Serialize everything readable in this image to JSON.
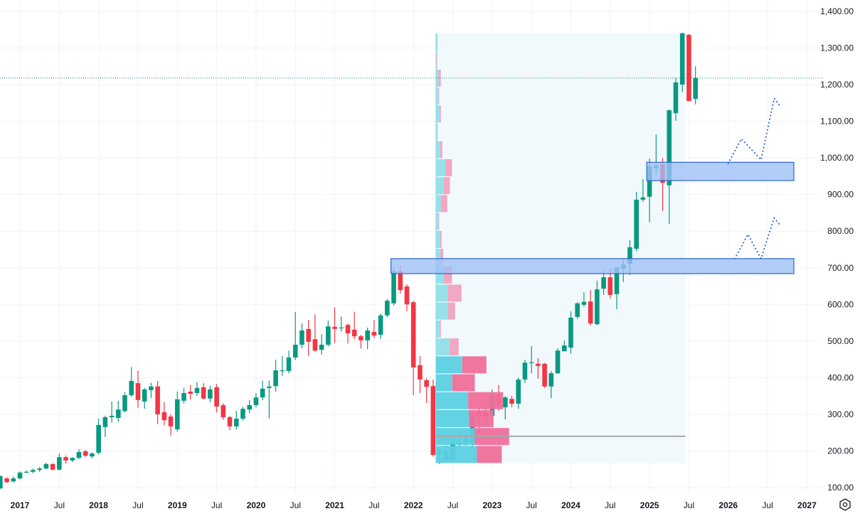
{
  "chart_data": {
    "type": "candlestick",
    "interval": "monthly",
    "colors": {
      "up": "#089981",
      "down": "#f23645",
      "grid": "#f0f3fa",
      "zone_fill": "#9fc0f5",
      "zone_border": "#2f63c9",
      "projection": "#3b6fd0",
      "last_price_line": "#0d8a80",
      "profile_bg": "#f2f9fd",
      "profile_up": "#5bd0e0",
      "profile_down": "#ef6f9b",
      "profile_up_outside": "#90dfe8",
      "profile_down_outside": "#f0a3c0",
      "poc": "#a6a8ad"
    },
    "ylim": [
      100,
      1400
    ],
    "price_ticks": [
      "100.00",
      "200.00",
      "300.00",
      "400.00",
      "500.00",
      "600.00",
      "700.00",
      "800.00",
      "900.00",
      "1,000.00",
      "1,100.00",
      "1,200.00",
      "1,300.00",
      "1,400.00"
    ],
    "price_tick_values": [
      100,
      200,
      300,
      400,
      500,
      600,
      700,
      800,
      900,
      1000,
      1100,
      1200,
      1300,
      1400
    ],
    "time_ticks": [
      {
        "label": "2017",
        "date": "2017-01",
        "bold": true
      },
      {
        "label": "Jul",
        "date": "2017-07",
        "bold": false
      },
      {
        "label": "2018",
        "date": "2018-01",
        "bold": true
      },
      {
        "label": "Jul",
        "date": "2018-07",
        "bold": false
      },
      {
        "label": "2019",
        "date": "2019-01",
        "bold": true
      },
      {
        "label": "Jul",
        "date": "2019-07",
        "bold": false
      },
      {
        "label": "2020",
        "date": "2020-01",
        "bold": true
      },
      {
        "label": "Jul",
        "date": "2020-07",
        "bold": false
      },
      {
        "label": "2021",
        "date": "2021-01",
        "bold": true
      },
      {
        "label": "Jul",
        "date": "2021-07",
        "bold": false
      },
      {
        "label": "2022",
        "date": "2022-01",
        "bold": true
      },
      {
        "label": "Jul",
        "date": "2022-07",
        "bold": false
      },
      {
        "label": "2023",
        "date": "2023-01",
        "bold": true
      },
      {
        "label": "Jul",
        "date": "2023-07",
        "bold": false
      },
      {
        "label": "2024",
        "date": "2024-01",
        "bold": true
      },
      {
        "label": "Jul",
        "date": "2024-07",
        "bold": false
      },
      {
        "label": "2025",
        "date": "2025-01",
        "bold": true
      },
      {
        "label": "Jul",
        "date": "2025-07",
        "bold": false
      },
      {
        "label": "2026",
        "date": "2026-01",
        "bold": true
      },
      {
        "label": "Jul",
        "date": "2026-07",
        "bold": false
      },
      {
        "label": "2027",
        "date": "2027-01",
        "bold": true
      }
    ],
    "last_price": 1218,
    "candles_columns": [
      "date",
      "open",
      "high",
      "low",
      "close"
    ],
    "candles": [
      [
        "2016-10",
        98,
        133,
        96,
        131
      ],
      [
        "2016-11",
        125,
        128,
        112,
        115
      ],
      [
        "2016-12",
        117,
        130,
        114,
        125
      ],
      [
        "2017-01",
        125,
        144,
        123,
        141
      ],
      [
        "2017-02",
        142,
        147,
        140,
        143
      ],
      [
        "2017-03",
        143,
        152,
        139,
        148
      ],
      [
        "2017-04",
        148,
        156,
        143,
        152
      ],
      [
        "2017-05",
        152,
        168,
        150,
        164
      ],
      [
        "2017-06",
        164,
        167,
        147,
        149
      ],
      [
        "2017-07",
        149,
        193,
        147,
        183
      ],
      [
        "2017-08",
        183,
        188,
        165,
        174
      ],
      [
        "2017-09",
        174,
        183,
        170,
        181
      ],
      [
        "2017-10",
        181,
        205,
        178,
        197
      ],
      [
        "2017-11",
        199,
        203,
        183,
        187
      ],
      [
        "2017-12",
        185,
        196,
        180,
        193
      ],
      [
        "2018-01",
        195,
        288,
        190,
        271
      ],
      [
        "2018-02",
        265,
        296,
        238,
        292
      ],
      [
        "2018-03",
        292,
        335,
        277,
        296
      ],
      [
        "2018-04",
        290,
        337,
        280,
        313
      ],
      [
        "2018-05",
        309,
        360,
        305,
        352
      ],
      [
        "2018-06",
        352,
        429,
        348,
        391
      ],
      [
        "2018-07",
        385,
        419,
        318,
        339
      ],
      [
        "2018-08",
        335,
        372,
        315,
        368
      ],
      [
        "2018-09",
        366,
        386,
        345,
        376
      ],
      [
        "2018-10",
        376,
        391,
        273,
        300
      ],
      [
        "2018-11",
        306,
        333,
        270,
        284
      ],
      [
        "2018-12",
        294,
        300,
        242,
        267
      ],
      [
        "2019-01",
        259,
        362,
        253,
        341
      ],
      [
        "2019-02",
        337,
        372,
        330,
        358
      ],
      [
        "2019-03",
        362,
        380,
        340,
        356
      ],
      [
        "2019-04",
        358,
        388,
        350,
        372
      ],
      [
        "2019-05",
        374,
        385,
        340,
        343
      ],
      [
        "2019-06",
        343,
        378,
        333,
        368
      ],
      [
        "2019-07",
        374,
        383,
        305,
        321
      ],
      [
        "2019-08",
        325,
        330,
        285,
        292
      ],
      [
        "2019-09",
        292,
        296,
        256,
        267
      ],
      [
        "2019-10",
        267,
        309,
        259,
        288
      ],
      [
        "2019-11",
        288,
        320,
        283,
        315
      ],
      [
        "2019-12",
        313,
        339,
        303,
        325
      ],
      [
        "2020-01",
        325,
        358,
        319,
        346
      ],
      [
        "2020-02",
        346,
        392,
        338,
        370
      ],
      [
        "2020-03",
        372,
        392,
        289,
        376
      ],
      [
        "2020-04",
        377,
        449,
        362,
        420
      ],
      [
        "2020-05",
        418,
        459,
        405,
        420
      ],
      [
        "2020-06",
        418,
        474,
        412,
        455
      ],
      [
        "2020-07",
        455,
        579,
        448,
        490
      ],
      [
        "2020-08",
        490,
        548,
        480,
        529
      ],
      [
        "2020-09",
        533,
        558,
        459,
        498
      ],
      [
        "2020-10",
        505,
        573,
        470,
        474
      ],
      [
        "2020-11",
        476,
        519,
        463,
        490
      ],
      [
        "2020-12",
        490,
        556,
        485,
        540
      ],
      [
        "2021-01",
        539,
        592,
        495,
        533
      ],
      [
        "2021-02",
        535,
        567,
        526,
        537
      ],
      [
        "2021-03",
        544,
        548,
        493,
        521
      ],
      [
        "2021-04",
        531,
        580,
        505,
        513
      ],
      [
        "2021-05",
        513,
        517,
        480,
        502
      ],
      [
        "2021-06",
        502,
        537,
        478,
        529
      ],
      [
        "2021-07",
        525,
        558,
        508,
        515
      ],
      [
        "2021-08",
        517,
        575,
        506,
        570
      ],
      [
        "2021-09",
        570,
        615,
        565,
        610
      ],
      [
        "2021-10",
        603,
        700,
        597,
        690
      ],
      [
        "2021-11",
        690,
        706,
        630,
        639
      ],
      [
        "2021-12",
        649,
        655,
        581,
        600
      ],
      [
        "2022-01",
        606,
        610,
        352,
        428
      ],
      [
        "2022-02",
        434,
        459,
        358,
        395
      ],
      [
        "2022-03",
        393,
        398,
        331,
        375
      ],
      [
        "2022-04",
        377,
        395,
        185,
        189
      ],
      [
        "2022-05",
        193,
        205,
        164,
        199
      ],
      [
        "2022-06",
        176,
        215,
        170,
        199
      ],
      [
        "2022-07",
        176,
        230,
        172,
        224
      ],
      [
        "2022-08",
        220,
        253,
        210,
        223
      ],
      [
        "2022-09",
        222,
        251,
        214,
        236
      ],
      [
        "2022-10",
        222,
        306,
        214,
        292
      ],
      [
        "2022-11",
        306,
        319,
        253,
        294
      ],
      [
        "2022-12",
        304,
        331,
        275,
        294
      ],
      [
        "2023-01",
        296,
        368,
        290,
        354
      ],
      [
        "2023-02",
        354,
        380,
        310,
        321
      ],
      [
        "2023-03",
        319,
        350,
        286,
        346
      ],
      [
        "2023-04",
        342,
        350,
        319,
        329
      ],
      [
        "2023-05",
        329,
        400,
        315,
        395
      ],
      [
        "2023-06",
        395,
        449,
        385,
        441
      ],
      [
        "2023-07",
        440,
        486,
        412,
        442
      ],
      [
        "2023-08",
        438,
        453,
        397,
        432
      ],
      [
        "2023-09",
        438,
        440,
        372,
        376
      ],
      [
        "2023-10",
        376,
        418,
        344,
        412
      ],
      [
        "2023-11",
        412,
        480,
        410,
        474
      ],
      [
        "2023-12",
        472,
        502,
        473,
        488
      ],
      [
        "2024-01",
        482,
        581,
        465,
        564
      ],
      [
        "2024-02",
        566,
        606,
        560,
        603
      ],
      [
        "2024-03",
        599,
        633,
        593,
        607
      ],
      [
        "2024-04",
        608,
        639,
        542,
        548
      ],
      [
        "2024-05",
        546,
        665,
        543,
        641
      ],
      [
        "2024-06",
        643,
        692,
        626,
        674
      ],
      [
        "2024-07",
        674,
        698,
        616,
        626
      ],
      [
        "2024-08",
        628,
        701,
        587,
        701
      ],
      [
        "2024-09",
        697,
        725,
        661,
        709
      ],
      [
        "2024-10",
        711,
        775,
        680,
        756
      ],
      [
        "2024-11",
        752,
        907,
        745,
        886
      ],
      [
        "2024-12",
        886,
        942,
        880,
        892
      ],
      [
        "2025-01",
        894,
        998,
        824,
        977
      ],
      [
        "2025-02",
        971,
        1064,
        952,
        979
      ],
      [
        "2025-03",
        983,
        1000,
        855,
        932
      ],
      [
        "2025-04",
        925,
        1132,
        820,
        1130
      ],
      [
        "2025-05",
        1122,
        1218,
        1101,
        1206
      ],
      [
        "2025-06",
        1200,
        1342,
        1179,
        1340
      ],
      [
        "2025-07",
        1336,
        1338,
        1155,
        1155
      ],
      [
        "2025-08",
        1161,
        1250,
        1146,
        1218
      ]
    ],
    "volume_profile": {
      "start": "2022-05",
      "end": "2025-07",
      "price_range": [
        166,
        1340
      ],
      "value_area_rows_from_bottom": [
        0,
        5
      ],
      "poc_price": 240,
      "rows_bottom_to_top_up_volume": [
        57.3,
        54.3,
        46,
        45,
        22.7,
        36.7,
        19,
        5,
        16.7,
        16,
        10.7,
        5.7,
        5.7,
        3.3,
        6.7,
        10.7,
        13.3,
        5.7,
        2.3,
        5,
        3.3,
        3.3,
        0.5,
        2
      ],
      "rows_bottom_to_top_down_volume": [
        35,
        48.3,
        34.7,
        49.3,
        31.7,
        34,
        12.7,
        1.7,
        10,
        19.7,
        11.7,
        4.3,
        2,
        1,
        9,
        8.7,
        9,
        3,
        0,
        1.7,
        1,
        3.3,
        1,
        0
      ]
    },
    "zones": [
      {
        "name": "support-zone-700",
        "start": "2021-10",
        "end": "2026-11",
        "top": 725,
        "bottom": 684
      },
      {
        "name": "support-zone-960",
        "start": "2025-01",
        "end": "2026-11",
        "top": 988,
        "bottom": 938
      }
    ],
    "projections": [
      {
        "name": "projection-path-upper",
        "points": [
          [
            "2026-01",
            985
          ],
          [
            "2026-03",
            1052
          ],
          [
            "2026-06",
            995
          ],
          [
            "2026-08",
            1162
          ],
          [
            "2026-09",
            1140
          ]
        ]
      },
      {
        "name": "projection-path-lower",
        "points": [
          [
            "2026-02",
            725
          ],
          [
            "2026-04",
            791
          ],
          [
            "2026-06",
            725
          ],
          [
            "2026-08",
            836
          ],
          [
            "2026-09",
            815
          ]
        ]
      }
    ]
  },
  "icons": {
    "settings": "hexagon-settings-icon"
  }
}
